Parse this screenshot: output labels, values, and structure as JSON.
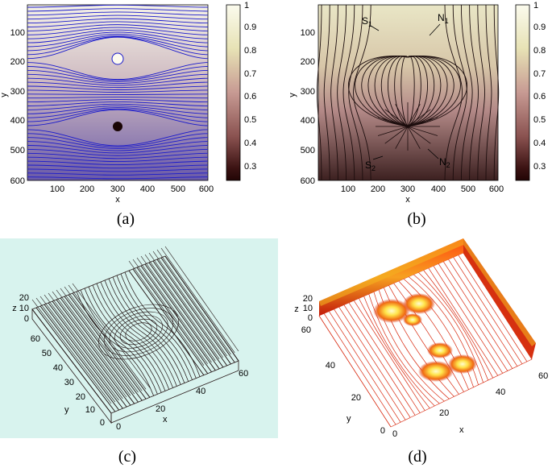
{
  "panels": {
    "a": {
      "caption": "(a)",
      "xlabel": "x",
      "ylabel": "y",
      "xticks": [
        "100",
        "200",
        "300",
        "400",
        "500",
        "600"
      ],
      "yticks": [
        "100",
        "200",
        "300",
        "400",
        "500",
        "600"
      ],
      "colorbar_ticks": [
        "1",
        "0.9",
        "0.8",
        "0.7",
        "0.6",
        "0.5",
        "0.4",
        "0.3"
      ],
      "line_color": "#1a1acc"
    },
    "b": {
      "caption": "(b)",
      "xlabel": "x",
      "ylabel": "y",
      "xticks": [
        "100",
        "200",
        "300",
        "400",
        "500",
        "600"
      ],
      "yticks": [
        "100",
        "200",
        "300",
        "400",
        "500",
        "600"
      ],
      "colorbar_ticks": [
        "1",
        "0.9",
        "0.8",
        "0.7",
        "0.6",
        "0.5",
        "0.4",
        "0.3"
      ],
      "points": {
        "s1": {
          "text": "S",
          "sub": "1"
        },
        "n1": {
          "text": "N",
          "sub": "1"
        },
        "s2": {
          "text": "S",
          "sub": "2"
        },
        "n2": {
          "text": "N",
          "sub": "2"
        }
      }
    },
    "c": {
      "caption": "(c)",
      "xlabel": "x",
      "ylabel": "y",
      "zlabel": "z",
      "xticks": [
        "0",
        "20",
        "40",
        "60"
      ],
      "yticks": [
        "0",
        "10",
        "20",
        "30",
        "40",
        "50",
        "60"
      ],
      "zticks": [
        "0",
        "10",
        "20"
      ],
      "background": "#d8f3ee"
    },
    "d": {
      "caption": "(d)",
      "xlabel": "x",
      "ylabel": "y",
      "zlabel": "z",
      "xticks": [
        "0",
        "20",
        "40",
        "60"
      ],
      "yticks": [
        "0",
        "20",
        "40",
        "60"
      ],
      "zticks": [
        "0",
        "10",
        "20"
      ]
    }
  },
  "colors": {
    "colormap_top": "#fbfbee",
    "colormap_mid": "#b87d7a",
    "colormap_bottom": "#2a0808",
    "streamline_dark": "#1c0d0d",
    "contour_red": "#d82a10",
    "contour_yellow": "#ffe020"
  }
}
